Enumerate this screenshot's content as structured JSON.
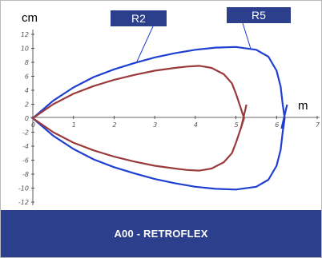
{
  "chart_data": {
    "type": "line",
    "xlabel": "m",
    "ylabel": "cm",
    "xlim": [
      0,
      7
    ],
    "ylim": [
      -12,
      12
    ],
    "x_ticks": [
      "0",
      "1",
      "2",
      "3",
      "4",
      "5",
      "6",
      "7"
    ],
    "y_ticks": [
      "12",
      "10",
      "8",
      "6",
      "4",
      "2",
      "0",
      "-2",
      "-4",
      "-6",
      "-8",
      "-10",
      "-12"
    ],
    "grid": false,
    "series": [
      {
        "name": "R2",
        "color": "#1f3fd1",
        "x": [
          0,
          0.5,
          1,
          1.5,
          2,
          2.5,
          3,
          3.5,
          4,
          4.5,
          5,
          5.5,
          5.8,
          6.0,
          6.1,
          6.15,
          6.2
        ],
        "y": [
          0,
          2.5,
          4.4,
          5.9,
          7.0,
          7.9,
          8.7,
          9.3,
          9.8,
          10.1,
          10.2,
          9.8,
          8.8,
          6.8,
          4.5,
          2.0,
          0
        ]
      },
      {
        "name": "R5",
        "color": "#9b3a3a",
        "x": [
          0,
          0.5,
          1,
          1.5,
          2,
          2.5,
          3,
          3.5,
          3.8,
          4.1,
          4.4,
          4.7,
          4.9,
          5.0,
          5.1,
          5.2
        ],
        "y": [
          0,
          2.0,
          3.5,
          4.6,
          5.5,
          6.2,
          6.8,
          7.2,
          7.4,
          7.5,
          7.2,
          6.3,
          5.0,
          3.5,
          1.8,
          0
        ]
      }
    ]
  },
  "footer_title": "A00 - RETROFLEX"
}
